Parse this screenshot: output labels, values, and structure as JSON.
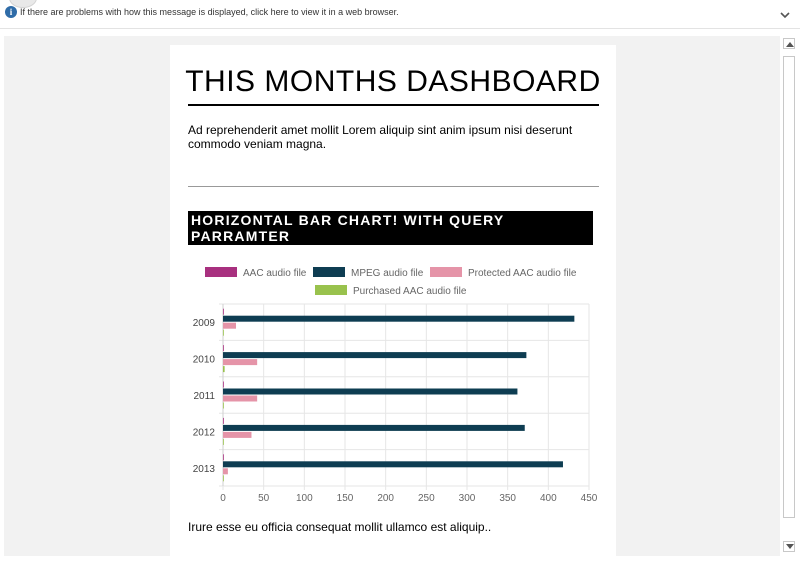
{
  "infobar": {
    "message": "If there are problems with how this message is displayed, click here to view it in a web browser.",
    "info_icon": "info-icon",
    "collapse_icon": "chevron-down-icon"
  },
  "email": {
    "title": "THIS MONTHS DASHBOARD",
    "intro": "Ad reprehenderit amet mollit Lorem aliquip sint anim ipsum nisi deserunt commodo veniam magna.",
    "chart_heading": "HORIZONTAL BAR CHART! WITH QUERY PARRAMTER",
    "outro": "Irure esse eu officia consequat mollit ullamco est aliquip.."
  },
  "colors": {
    "aac": "#a8307f",
    "mpeg": "#0e3d52",
    "protected_aac": "#e594a8",
    "purchased_aac": "#99c24d"
  },
  "chart_data": {
    "type": "bar",
    "orientation": "horizontal",
    "categories": [
      "2009",
      "2010",
      "2011",
      "2012",
      "2013"
    ],
    "series": [
      {
        "name": "AAC audio file",
        "color": "#a8307f",
        "values": [
          0,
          0,
          0,
          0,
          0
        ]
      },
      {
        "name": "MPEG audio file",
        "color": "#0e3d52",
        "values": [
          432,
          373,
          362,
          371,
          418
        ]
      },
      {
        "name": "Protected AAC audio file",
        "color": "#e594a8",
        "values": [
          16,
          42,
          42,
          35,
          6
        ]
      },
      {
        "name": "Purchased AAC audio file",
        "color": "#99c24d",
        "values": [
          0,
          2,
          0,
          0,
          0
        ]
      }
    ],
    "xlim": [
      0,
      450
    ],
    "xticks": [
      "0",
      "50",
      "100",
      "150",
      "200",
      "250",
      "300",
      "350",
      "400",
      "450"
    ],
    "grid": true,
    "legend_position": "top"
  },
  "scrollbar": {
    "up_icon": "triangle-up-icon",
    "down_icon": "triangle-down-icon"
  }
}
